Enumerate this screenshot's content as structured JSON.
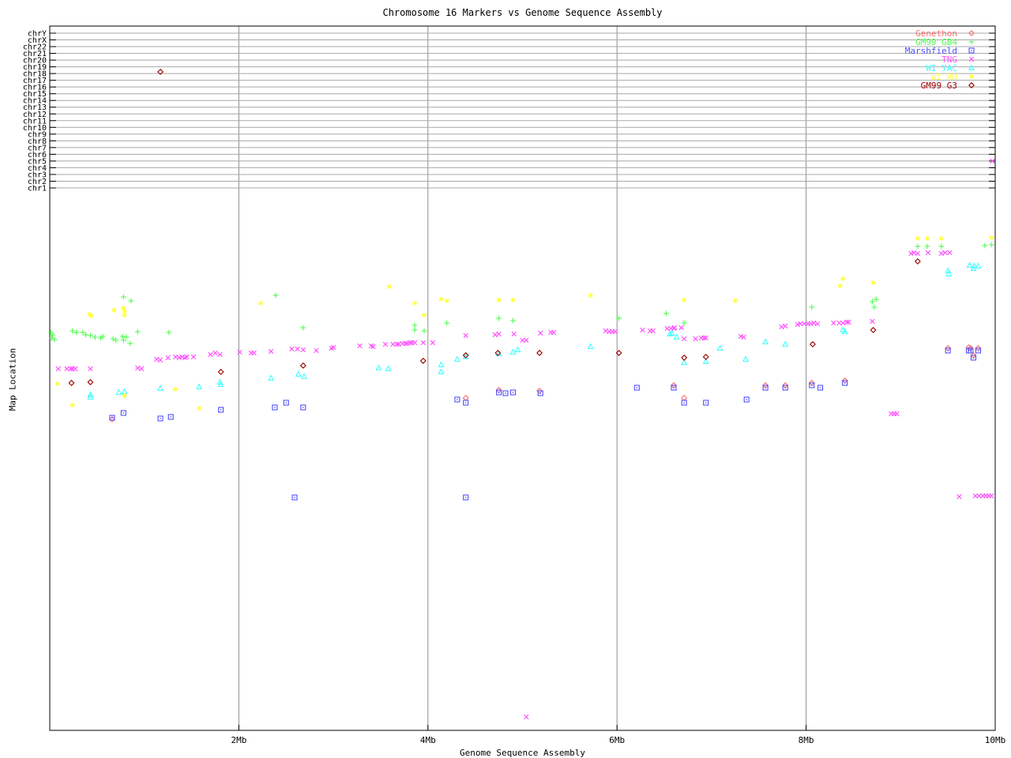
{
  "title": "Chromosome 16 Markers vs Genome Sequence Assembly",
  "x_axis": {
    "title": "Genome Sequence Assembly",
    "range_mb": [
      0,
      10
    ],
    "ticks": [
      {
        "label": "2Mb",
        "mb": 2
      },
      {
        "label": "4Mb",
        "mb": 4
      },
      {
        "label": "6Mb",
        "mb": 6
      },
      {
        "label": "8Mb",
        "mb": 8
      },
      {
        "label": "10Mb",
        "mb": 10
      }
    ],
    "gridlines_mb": [
      2,
      4,
      6,
      8
    ]
  },
  "y_axis": {
    "title": "Map Location",
    "chromosome_labels": [
      "chrY",
      "chrX",
      "chr22",
      "chr21",
      "chr20",
      "chr19",
      "chr18",
      "chr17",
      "chr16",
      "chr15",
      "chr14",
      "chr13",
      "chr12",
      "chr11",
      "chr10",
      "chr9",
      "chr8",
      "chr7",
      "chr6",
      "chr5",
      "chr4",
      "chr3",
      "chr2",
      "chr1"
    ]
  },
  "legend": {
    "entries": [
      {
        "label": "Genethon",
        "symbol": "diamond-open",
        "color": "#ff6f6f"
      },
      {
        "label": "GM99 GB4",
        "symbol": "plus",
        "color": "#4dff4d"
      },
      {
        "label": "Marshfield",
        "symbol": "square-dot",
        "color": "#5050ff"
      },
      {
        "label": "TNG",
        "symbol": "x-cross",
        "color": "#ff50ff"
      },
      {
        "label": "WI YAC",
        "symbol": "triangle-open",
        "color": "#40ffff"
      },
      {
        "label": "WI RH",
        "symbol": "asterisk",
        "color": "#ffff40"
      },
      {
        "label": "GM99 G3",
        "symbol": "diamond-open",
        "color": "#990000"
      }
    ]
  },
  "chart_data": {
    "type": "scatter",
    "title": "Chromosome 16 Markers vs Genome Sequence Assembly",
    "xlabel": "Genome Sequence Assembly",
    "ylabel": "Map Location",
    "x_units": "Mb",
    "xlim": [
      0,
      10
    ],
    "y_note": "Vertical axis has no numeric scale; y values below are screen pixel positions (top of plot = 33, bottom = 925). Chromosome reference lines chrY..chr1 occupy y = 42..238.",
    "grid": "vertical gray lines at 2,4,6,8 Mb; horizontal gray line per chromosome",
    "legend_position": "top-right inside plot",
    "series": [
      {
        "name": "Genethon",
        "symbol": "diamond-open",
        "color": "#ff6f6f",
        "points": [
          [
            0.66,
            531
          ],
          [
            4.4,
            504
          ],
          [
            4.75,
            494
          ],
          [
            5.18,
            495
          ],
          [
            6.6,
            488
          ],
          [
            6.71,
            504
          ],
          [
            7.57,
            488
          ],
          [
            7.78,
            488
          ],
          [
            8.06,
            485
          ],
          [
            8.41,
            482
          ],
          [
            9.5,
            441
          ],
          [
            9.72,
            440
          ],
          [
            9.74,
            441
          ],
          [
            9.77,
            450
          ],
          [
            9.82,
            441
          ]
        ]
      },
      {
        "name": "GM99 GB4",
        "symbol": "plus",
        "color": "#4dff4d",
        "points": [
          [
            0.01,
            421
          ],
          [
            0.03,
            424
          ],
          [
            0.02,
            428
          ],
          [
            0.05,
            430
          ],
          [
            0.24,
            419
          ],
          [
            0.28,
            421
          ],
          [
            0.35,
            421
          ],
          [
            0.38,
            424
          ],
          [
            0.43,
            425
          ],
          [
            0.48,
            427
          ],
          [
            0.54,
            428
          ],
          [
            0.56,
            426
          ],
          [
            0.67,
            429
          ],
          [
            0.7,
            431
          ],
          [
            0.77,
            426
          ],
          [
            0.78,
            431
          ],
          [
            0.81,
            427
          ],
          [
            0.85,
            435
          ],
          [
            0.93,
            420
          ],
          [
            1.26,
            421
          ],
          [
            0.78,
            376
          ],
          [
            0.86,
            381
          ],
          [
            2.39,
            374
          ],
          [
            2.68,
            415
          ],
          [
            3.86,
            412
          ],
          [
            3.86,
            418
          ],
          [
            3.96,
            419
          ],
          [
            4.2,
            409
          ],
          [
            4.75,
            403
          ],
          [
            4.9,
            406
          ],
          [
            6.02,
            403
          ],
          [
            6.52,
            397
          ],
          [
            6.71,
            409
          ],
          [
            8.06,
            389
          ],
          [
            8.7,
            382
          ],
          [
            8.74,
            379
          ],
          [
            8.72,
            389
          ],
          [
            9.18,
            312
          ],
          [
            9.28,
            312
          ],
          [
            9.43,
            312
          ],
          [
            9.89,
            311
          ],
          [
            9.96,
            310
          ]
        ]
      },
      {
        "name": "Marshfield",
        "symbol": "square-dot",
        "color": "#5050ff",
        "points": [
          [
            0.66,
            529
          ],
          [
            0.78,
            523
          ],
          [
            1.17,
            530
          ],
          [
            1.28,
            528
          ],
          [
            1.81,
            519
          ],
          [
            2.38,
            516
          ],
          [
            2.5,
            510
          ],
          [
            2.68,
            516
          ],
          [
            4.31,
            506
          ],
          [
            4.4,
            510
          ],
          [
            4.75,
            497
          ],
          [
            4.82,
            498
          ],
          [
            4.9,
            497
          ],
          [
            5.19,
            498
          ],
          [
            6.21,
            491
          ],
          [
            6.6,
            491
          ],
          [
            6.71,
            510
          ],
          [
            6.94,
            510
          ],
          [
            7.37,
            506
          ],
          [
            7.57,
            491
          ],
          [
            7.78,
            491
          ],
          [
            8.06,
            488
          ],
          [
            8.15,
            491
          ],
          [
            8.41,
            485
          ],
          [
            9.5,
            444
          ],
          [
            9.72,
            444
          ],
          [
            9.74,
            444
          ],
          [
            9.82,
            444
          ],
          [
            9.77,
            453
          ],
          [
            2.59,
            630
          ],
          [
            4.4,
            630
          ]
        ]
      },
      {
        "name": "TNG",
        "symbol": "x-cross",
        "color": "#ff50ff",
        "points": [
          [
            0.09,
            467
          ],
          [
            0.18,
            467
          ],
          [
            0.22,
            467
          ],
          [
            0.24,
            467
          ],
          [
            0.27,
            467
          ],
          [
            0.43,
            467
          ],
          [
            0.93,
            466
          ],
          [
            0.97,
            467
          ],
          [
            1.13,
            455
          ],
          [
            1.17,
            456
          ],
          [
            1.25,
            453
          ],
          [
            1.33,
            452
          ],
          [
            1.37,
            453
          ],
          [
            1.4,
            452
          ],
          [
            1.43,
            453
          ],
          [
            1.45,
            452
          ],
          [
            1.52,
            452
          ],
          [
            1.7,
            449
          ],
          [
            1.75,
            447
          ],
          [
            1.8,
            449
          ],
          [
            2.01,
            446
          ],
          [
            2.13,
            447
          ],
          [
            2.16,
            447
          ],
          [
            2.34,
            445
          ],
          [
            2.56,
            442
          ],
          [
            2.62,
            442
          ],
          [
            2.68,
            443
          ],
          [
            2.82,
            444
          ],
          [
            2.98,
            441
          ],
          [
            3.0,
            440
          ],
          [
            3.28,
            438
          ],
          [
            3.4,
            438
          ],
          [
            3.42,
            439
          ],
          [
            3.55,
            436
          ],
          [
            3.63,
            436
          ],
          [
            3.67,
            436
          ],
          [
            3.69,
            436
          ],
          [
            3.73,
            435
          ],
          [
            3.76,
            435
          ],
          [
            3.78,
            435
          ],
          [
            3.81,
            434
          ],
          [
            3.83,
            434
          ],
          [
            3.86,
            434
          ],
          [
            3.95,
            434
          ],
          [
            4.05,
            434
          ],
          [
            4.4,
            425
          ],
          [
            4.71,
            424
          ],
          [
            4.75,
            423
          ],
          [
            4.91,
            423
          ],
          [
            5.0,
            431
          ],
          [
            5.04,
            431
          ],
          [
            5.19,
            422
          ],
          [
            5.3,
            421
          ],
          [
            5.33,
            421
          ],
          [
            5.88,
            419
          ],
          [
            5.92,
            420
          ],
          [
            5.95,
            420
          ],
          [
            5.98,
            420
          ],
          [
            6.27,
            418
          ],
          [
            6.35,
            419
          ],
          [
            6.38,
            419
          ],
          [
            6.53,
            416
          ],
          [
            6.57,
            416
          ],
          [
            6.6,
            416
          ],
          [
            6.61,
            415
          ],
          [
            6.68,
            415
          ],
          [
            6.71,
            429
          ],
          [
            6.83,
            429
          ],
          [
            6.89,
            428
          ],
          [
            6.92,
            428
          ],
          [
            6.94,
            428
          ],
          [
            7.31,
            426
          ],
          [
            7.34,
            427
          ],
          [
            7.74,
            414
          ],
          [
            7.78,
            413
          ],
          [
            7.91,
            411
          ],
          [
            7.94,
            410
          ],
          [
            7.98,
            410
          ],
          [
            8.02,
            410
          ],
          [
            8.05,
            410
          ],
          [
            8.08,
            409
          ],
          [
            8.12,
            410
          ],
          [
            8.29,
            409
          ],
          [
            8.35,
            409
          ],
          [
            8.39,
            409
          ],
          [
            8.43,
            408
          ],
          [
            8.45,
            408
          ],
          [
            8.7,
            407
          ],
          [
            9.11,
            321
          ],
          [
            9.14,
            320
          ],
          [
            9.18,
            321
          ],
          [
            9.29,
            320
          ],
          [
            9.43,
            321
          ],
          [
            9.47,
            320
          ],
          [
            9.52,
            320
          ],
          [
            9.97,
            204
          ],
          [
            8.9,
            524
          ],
          [
            8.93,
            524
          ],
          [
            8.96,
            524
          ],
          [
            9.62,
            629
          ],
          [
            9.79,
            628
          ],
          [
            9.83,
            628
          ],
          [
            9.87,
            628
          ],
          [
            9.9,
            628
          ],
          [
            9.93,
            628
          ],
          [
            9.96,
            628
          ],
          [
            5.04,
            908
          ]
        ]
      },
      {
        "name": "WI YAC",
        "symbol": "triangle-open",
        "color": "#40ffff",
        "points": [
          [
            0.43,
            500
          ],
          [
            0.43,
            503
          ],
          [
            0.73,
            497
          ],
          [
            0.79,
            496
          ],
          [
            1.17,
            492
          ],
          [
            1.58,
            490
          ],
          [
            1.8,
            484
          ],
          [
            1.81,
            487
          ],
          [
            2.34,
            479
          ],
          [
            2.63,
            474
          ],
          [
            2.69,
            477
          ],
          [
            3.48,
            466
          ],
          [
            3.58,
            467
          ],
          [
            4.14,
            462
          ],
          [
            4.14,
            471
          ],
          [
            4.31,
            455
          ],
          [
            4.4,
            452
          ],
          [
            4.75,
            448
          ],
          [
            4.9,
            446
          ],
          [
            4.95,
            443
          ],
          [
            5.72,
            439
          ],
          [
            6.56,
            423
          ],
          [
            6.58,
            422
          ],
          [
            6.63,
            427
          ],
          [
            6.71,
            459
          ],
          [
            6.94,
            458
          ],
          [
            7.09,
            441
          ],
          [
            7.36,
            455
          ],
          [
            7.57,
            433
          ],
          [
            7.78,
            436
          ],
          [
            8.39,
            418
          ],
          [
            8.41,
            420
          ],
          [
            9.5,
            343
          ],
          [
            9.51,
            347
          ],
          [
            9.73,
            336
          ],
          [
            9.77,
            340
          ],
          [
            9.78,
            337
          ],
          [
            9.82,
            337
          ]
        ]
      },
      {
        "name": "WI RH",
        "symbol": "asterisk",
        "color": "#ffff40",
        "points": [
          [
            0.42,
            398
          ],
          [
            0.44,
            400
          ],
          [
            0.68,
            393
          ],
          [
            0.78,
            390
          ],
          [
            0.79,
            394
          ],
          [
            0.79,
            399
          ],
          [
            0.08,
            486
          ],
          [
            0.24,
            513
          ],
          [
            0.79,
            501
          ],
          [
            1.33,
            493
          ],
          [
            1.58,
            517
          ],
          [
            2.23,
            384
          ],
          [
            3.59,
            363
          ],
          [
            3.86,
            384
          ],
          [
            3.96,
            399
          ],
          [
            4.14,
            379
          ],
          [
            4.2,
            381
          ],
          [
            4.75,
            380
          ],
          [
            4.9,
            380
          ],
          [
            5.72,
            374
          ],
          [
            6.71,
            380
          ],
          [
            7.25,
            381
          ],
          [
            8.36,
            362
          ],
          [
            8.39,
            353
          ],
          [
            8.71,
            358
          ],
          [
            9.18,
            302
          ],
          [
            9.28,
            302
          ],
          [
            9.43,
            302
          ],
          [
            9.96,
            301
          ]
        ]
      },
      {
        "name": "GM99 G3",
        "symbol": "diamond-open",
        "color": "#990000",
        "points": [
          [
            1.17,
            91
          ],
          [
            0.23,
            485
          ],
          [
            0.43,
            484
          ],
          [
            1.81,
            471
          ],
          [
            2.68,
            463
          ],
          [
            3.95,
            457
          ],
          [
            4.4,
            450
          ],
          [
            4.74,
            447
          ],
          [
            5.18,
            447
          ],
          [
            6.02,
            447
          ],
          [
            6.71,
            453
          ],
          [
            6.94,
            452
          ],
          [
            8.07,
            436
          ],
          [
            8.71,
            418
          ],
          [
            9.18,
            331
          ]
        ]
      }
    ]
  }
}
